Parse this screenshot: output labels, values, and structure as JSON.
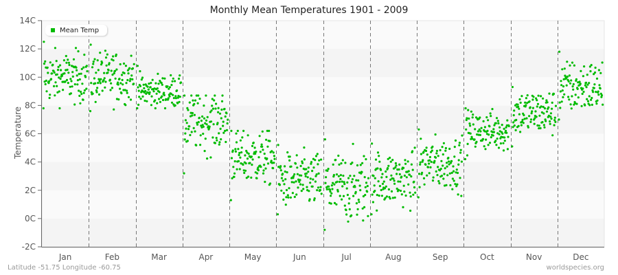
{
  "title": "Monthly Mean Temperatures 1901 - 2009",
  "footer": {
    "location": "Latitude -51.75 Longitude -60.75",
    "credit": "worldspecies.org"
  },
  "legend": {
    "label": "Mean Temp",
    "color": "#00bb00"
  },
  "chart_data": {
    "type": "scatter",
    "title": "Monthly Mean Temperatures 1901 - 2009",
    "xlabel": "",
    "ylabel": "Temperature",
    "ylim": [
      -2,
      14
    ],
    "yticks": [
      "-2C",
      "0C",
      "2C",
      "4C",
      "6C",
      "8C",
      "10C",
      "12C",
      "14C"
    ],
    "categories": [
      "Jan",
      "Feb",
      "Mar",
      "Apr",
      "May",
      "Jun",
      "Jul",
      "Aug",
      "Sep",
      "Oct",
      "Nov",
      "Dec"
    ],
    "series": [
      {
        "name": "Mean Temp",
        "points_per_month": 109,
        "monthly_mean": [
          10.0,
          10.0,
          9.0,
          6.9,
          4.3,
          2.7,
          2.2,
          2.8,
          3.9,
          6.2,
          7.5,
          9.3
        ],
        "monthly_min": [
          7.8,
          7.6,
          7.8,
          3.2,
          1.3,
          0.3,
          -0.8,
          0.3,
          1.5,
          4.2,
          5.1,
          7.0
        ],
        "monthly_max": [
          12.5,
          12.3,
          10.8,
          8.7,
          6.2,
          5.2,
          5.6,
          5.3,
          6.3,
          7.8,
          9.3,
          11.8
        ]
      }
    ],
    "grid": "alternating horizontal bands, dashed vertical month dividers",
    "legend_position": "top-left"
  }
}
